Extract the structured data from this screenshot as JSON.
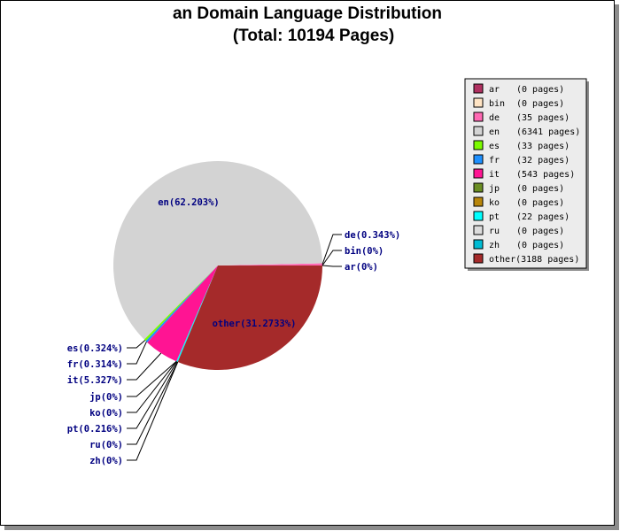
{
  "chart_data": {
    "type": "pie",
    "title": "an Domain Language Distribution",
    "subtitle": "(Total: 10194 Pages)",
    "slices": [
      {
        "code": "ar",
        "pages": 0,
        "count_label": "(0 pages)",
        "pct_label": "ar(0%)",
        "color": "#b03060"
      },
      {
        "code": "bin",
        "pages": 0,
        "count_label": "(0 pages)",
        "pct_label": "bin(0%)",
        "color": "#ffe4c4"
      },
      {
        "code": "de",
        "pages": 35,
        "count_label": "(35 pages)",
        "pct_label": "de(0.343%)",
        "color": "#ff69b4"
      },
      {
        "code": "en",
        "pages": 6341,
        "count_label": "(6341 pages)",
        "pct_label": "en(62.203%)",
        "color": "#d3d3d3"
      },
      {
        "code": "es",
        "pages": 33,
        "count_label": "(33 pages)",
        "pct_label": "es(0.324%)",
        "color": "#7cfc00"
      },
      {
        "code": "fr",
        "pages": 32,
        "count_label": "(32 pages)",
        "pct_label": "fr(0.314%)",
        "color": "#1e90ff"
      },
      {
        "code": "it",
        "pages": 543,
        "count_label": "(543 pages)",
        "pct_label": "it(5.327%)",
        "color": "#ff1493"
      },
      {
        "code": "jp",
        "pages": 0,
        "count_label": "(0 pages)",
        "pct_label": "jp(0%)",
        "color": "#6b8e23"
      },
      {
        "code": "ko",
        "pages": 0,
        "count_label": "(0 pages)",
        "pct_label": "ko(0%)",
        "color": "#b8860b"
      },
      {
        "code": "pt",
        "pages": 22,
        "count_label": "(22 pages)",
        "pct_label": "pt(0.216%)",
        "color": "#00ffff"
      },
      {
        "code": "ru",
        "pages": 0,
        "count_label": "(0 pages)",
        "pct_label": "ru(0%)",
        "color": "#dcdcdc"
      },
      {
        "code": "zh",
        "pages": 0,
        "count_label": "(0 pages)",
        "pct_label": "zh(0%)",
        "color": "#00bcd4"
      },
      {
        "code": "other",
        "pages": 3188,
        "count_label": "(3188 pages)",
        "legend_label": "other(3188 pages)",
        "pct_label": "other(31.2733%)",
        "color": "#a52a2a"
      }
    ],
    "legend_position": "right"
  }
}
